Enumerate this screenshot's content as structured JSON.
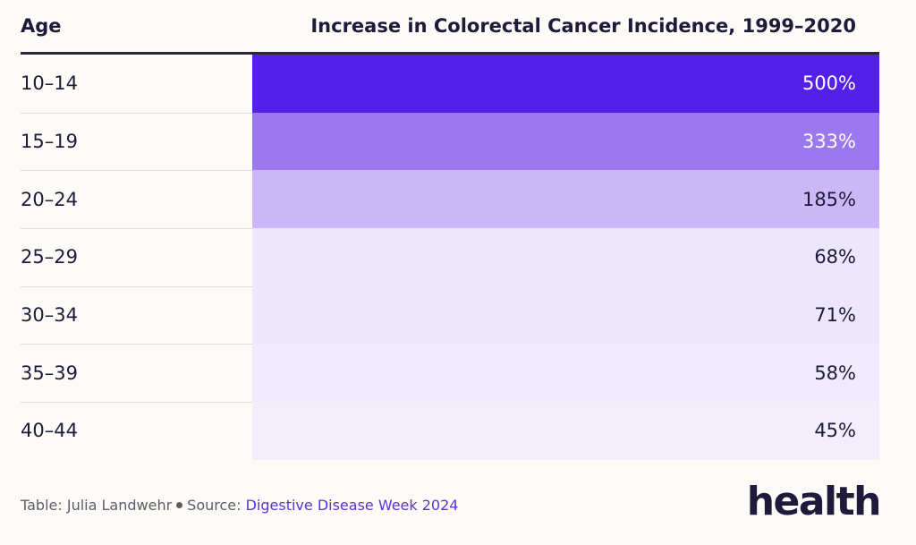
{
  "chart_data": {
    "type": "table",
    "columns": [
      "Age",
      "Increase in Colorectal Cancer Incidence, 1999–2020"
    ],
    "rows": [
      {
        "age": "10–14",
        "value": 500,
        "label": "500%",
        "color": "#5420e8",
        "text_color": "#ffffff"
      },
      {
        "age": "15–19",
        "value": 333,
        "label": "333%",
        "color": "#9b78f0",
        "text_color": "#ffffff"
      },
      {
        "age": "20–24",
        "value": 185,
        "label": "185%",
        "color": "#cbb8f8",
        "text_color": "#1e1a3a"
      },
      {
        "age": "25–29",
        "value": 68,
        "label": "68%",
        "color": "#ece7fc",
        "text_color": "#1e1a3a"
      },
      {
        "age": "30–34",
        "value": 71,
        "label": "71%",
        "color": "#ece7fc",
        "text_color": "#1e1a3a"
      },
      {
        "age": "35–39",
        "value": 58,
        "label": "58%",
        "color": "#f0ebfc",
        "text_color": "#1e1a3a"
      },
      {
        "age": "40–44",
        "value": 45,
        "label": "45%",
        "color": "#f2eefc",
        "text_color": "#1e1a3a"
      }
    ]
  },
  "footer": {
    "table_prefix": "Table: Julia Landwehr",
    "source_prefix": "Source:",
    "source_name": "Digestive Disease Week 2024"
  },
  "brand": {
    "logo_text": "health"
  },
  "colors": {
    "accent": "#5420e8",
    "text": "#1e1a3a",
    "link": "#5b32d8",
    "background": "#fcfbf8"
  }
}
